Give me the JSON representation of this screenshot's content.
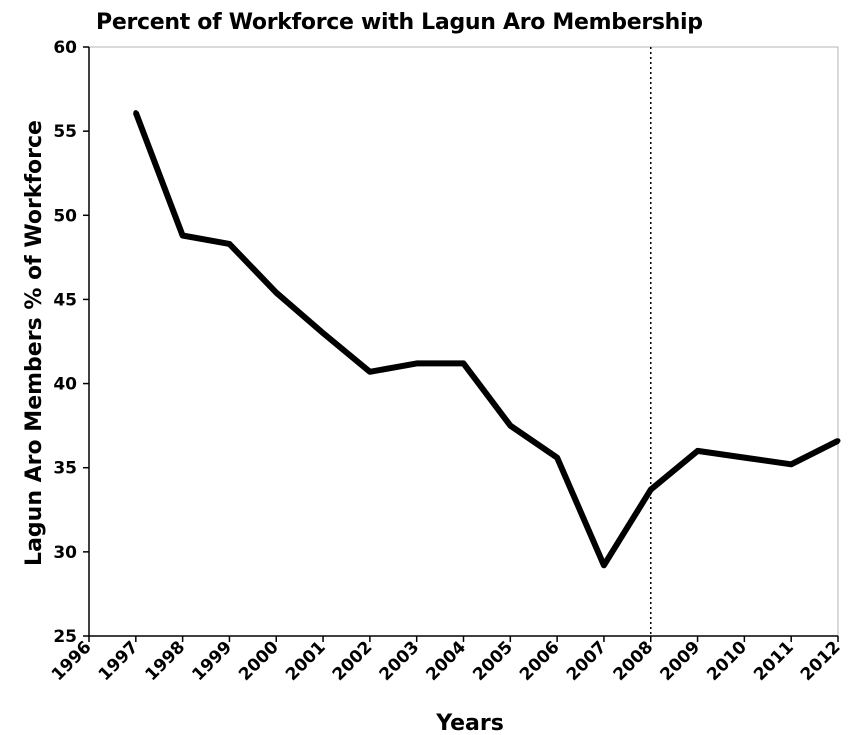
{
  "chart_data": {
    "type": "line",
    "title": "Percent of Workforce with Lagun Aro Membership",
    "xlabel": "Years",
    "ylabel": "Lagun Aro Members % of Workforce",
    "xlim": [
      1996,
      2012
    ],
    "ylim": [
      25,
      60
    ],
    "x_ticks": [
      "1996",
      "1997",
      "1998",
      "1999",
      "2000",
      "2001",
      "2002",
      "2003",
      "2004",
      "2005",
      "2006",
      "2007",
      "2008",
      "2009",
      "2010",
      "2011",
      "2012"
    ],
    "y_ticks": [
      "25",
      "30",
      "35",
      "40",
      "45",
      "50",
      "55",
      "60"
    ],
    "reference_line": {
      "x": 2008,
      "style": "dotted"
    },
    "grid": false,
    "legend": "none",
    "line_color": "#000000",
    "series": [
      {
        "x": [
          1997,
          1998,
          1999,
          2000,
          2001,
          2002,
          2003,
          2004,
          2005,
          2006,
          2007,
          2008,
          2009,
          2010,
          2011,
          2012
        ],
        "values": [
          56.1,
          48.8,
          48.3,
          45.4,
          43.0,
          40.7,
          41.2,
          41.2,
          37.5,
          35.6,
          29.2,
          33.7,
          36.0,
          35.6,
          35.2,
          36.6
        ]
      }
    ]
  }
}
